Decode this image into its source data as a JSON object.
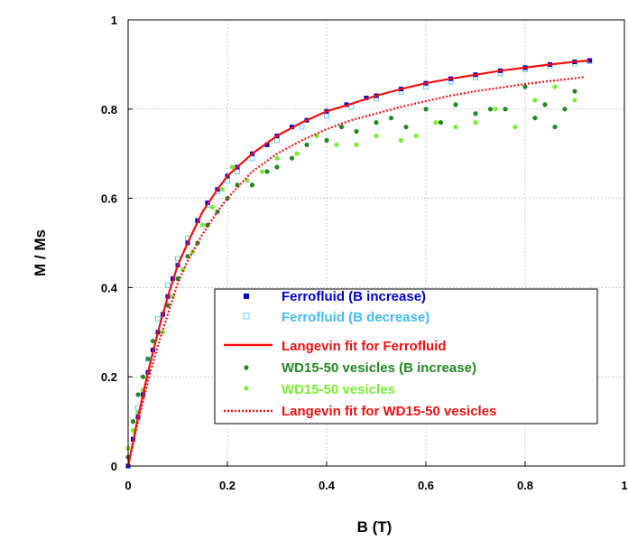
{
  "chart_data": {
    "type": "scatter",
    "title": "",
    "xlabel": "B (T)",
    "ylabel": "M / Ms",
    "xlim": [
      0,
      1
    ],
    "ylim": [
      0,
      1
    ],
    "x_ticks": [
      "0",
      "0.2",
      "0.4",
      "0.6",
      "0.8",
      "1"
    ],
    "y_ticks": [
      "0",
      "0.2",
      "0.4",
      "0.6",
      "0.8",
      "1"
    ],
    "grid": true,
    "legend_position": "lower-right",
    "series": [
      {
        "name": "Ferrofluid (B increase)",
        "style": "filled-square-markers",
        "color": "#0000cc",
        "x": [
          0,
          0.01,
          0.02,
          0.03,
          0.04,
          0.05,
          0.06,
          0.07,
          0.08,
          0.09,
          0.1,
          0.12,
          0.14,
          0.16,
          0.18,
          0.2,
          0.22,
          0.25,
          0.28,
          0.3,
          0.33,
          0.36,
          0.4,
          0.44,
          0.48,
          0.5,
          0.55,
          0.6,
          0.65,
          0.7,
          0.75,
          0.8,
          0.85,
          0.9,
          0.93
        ],
        "y": [
          0.0,
          0.06,
          0.11,
          0.16,
          0.21,
          0.26,
          0.3,
          0.34,
          0.38,
          0.42,
          0.45,
          0.5,
          0.55,
          0.59,
          0.62,
          0.65,
          0.67,
          0.7,
          0.72,
          0.74,
          0.76,
          0.775,
          0.795,
          0.81,
          0.825,
          0.83,
          0.845,
          0.858,
          0.868,
          0.877,
          0.886,
          0.893,
          0.9,
          0.906,
          0.909
        ]
      },
      {
        "name": "Ferrofluid (B decrease)",
        "style": "open-square-markers",
        "color": "#66ccff",
        "x": [
          0.93,
          0.9,
          0.85,
          0.8,
          0.75,
          0.7,
          0.65,
          0.6,
          0.55,
          0.5,
          0.45,
          0.4,
          0.35,
          0.3,
          0.25,
          0.22,
          0.2,
          0.18,
          0.16,
          0.14,
          0.12,
          0.1,
          0.08,
          0.06,
          0.04,
          0.02
        ],
        "y": [
          0.907,
          0.902,
          0.896,
          0.889,
          0.88,
          0.871,
          0.861,
          0.85,
          0.838,
          0.823,
          0.805,
          0.785,
          0.76,
          0.73,
          0.69,
          0.66,
          0.64,
          0.615,
          0.585,
          0.55,
          0.51,
          0.465,
          0.405,
          0.33,
          0.24,
          0.13
        ]
      },
      {
        "name": "Langevin fit for Ferrofluid",
        "style": "solid-line",
        "color": "#ee1111",
        "x": [
          0,
          0.02,
          0.04,
          0.06,
          0.08,
          0.1,
          0.12,
          0.15,
          0.18,
          0.2,
          0.25,
          0.3,
          0.35,
          0.4,
          0.45,
          0.5,
          0.55,
          0.6,
          0.65,
          0.7,
          0.75,
          0.8,
          0.85,
          0.9,
          0.93
        ],
        "y": [
          0,
          0.11,
          0.21,
          0.3,
          0.38,
          0.45,
          0.5,
          0.57,
          0.62,
          0.65,
          0.7,
          0.74,
          0.77,
          0.795,
          0.812,
          0.83,
          0.845,
          0.858,
          0.868,
          0.877,
          0.886,
          0.893,
          0.9,
          0.906,
          0.909
        ]
      },
      {
        "name": "WD15-50 vesicles (B increase)",
        "style": "filled-circle-markers",
        "color": "#228822",
        "x": [
          0.0,
          0.01,
          0.02,
          0.03,
          0.04,
          0.05,
          0.06,
          0.08,
          0.1,
          0.12,
          0.14,
          0.16,
          0.18,
          0.2,
          0.22,
          0.25,
          0.28,
          0.3,
          0.33,
          0.36,
          0.4,
          0.43,
          0.46,
          0.5,
          0.53,
          0.56,
          0.6,
          0.63,
          0.66,
          0.7,
          0.73,
          0.76,
          0.8,
          0.82,
          0.84,
          0.86,
          0.88,
          0.9
        ],
        "y": [
          0.02,
          0.1,
          0.16,
          0.2,
          0.24,
          0.28,
          0.3,
          0.36,
          0.42,
          0.47,
          0.5,
          0.54,
          0.57,
          0.6,
          0.63,
          0.63,
          0.66,
          0.67,
          0.69,
          0.72,
          0.73,
          0.76,
          0.75,
          0.77,
          0.78,
          0.76,
          0.8,
          0.77,
          0.81,
          0.79,
          0.8,
          0.8,
          0.85,
          0.78,
          0.81,
          0.76,
          0.8,
          0.84
        ]
      },
      {
        "name": "WD15-50 vesicles",
        "style": "filled-circle-markers",
        "color": "#77ee33",
        "x": [
          0.0,
          0.01,
          0.02,
          0.03,
          0.04,
          0.05,
          0.07,
          0.09,
          0.11,
          0.13,
          0.15,
          0.17,
          0.19,
          0.21,
          0.24,
          0.27,
          0.3,
          0.34,
          0.38,
          0.42,
          0.46,
          0.5,
          0.55,
          0.58,
          0.62,
          0.66,
          0.7,
          0.74,
          0.78,
          0.82,
          0.86,
          0.9
        ],
        "y": [
          0.04,
          0.08,
          0.12,
          0.17,
          0.21,
          0.26,
          0.3,
          0.38,
          0.44,
          0.48,
          0.54,
          0.58,
          0.62,
          0.67,
          0.64,
          0.66,
          0.69,
          0.7,
          0.74,
          0.72,
          0.72,
          0.74,
          0.73,
          0.74,
          0.77,
          0.76,
          0.77,
          0.8,
          0.76,
          0.82,
          0.85,
          0.82
        ]
      },
      {
        "name": "Langevin fit for WD15-50 vesicles",
        "style": "dotted-line",
        "color": "#ee1111",
        "x": [
          0,
          0.02,
          0.04,
          0.06,
          0.08,
          0.1,
          0.12,
          0.15,
          0.18,
          0.2,
          0.25,
          0.3,
          0.35,
          0.4,
          0.45,
          0.5,
          0.55,
          0.6,
          0.65,
          0.7,
          0.75,
          0.8,
          0.85,
          0.9,
          0.92
        ],
        "y": [
          0,
          0.1,
          0.19,
          0.27,
          0.34,
          0.41,
          0.46,
          0.52,
          0.57,
          0.6,
          0.66,
          0.7,
          0.73,
          0.755,
          0.775,
          0.79,
          0.805,
          0.818,
          0.83,
          0.84,
          0.848,
          0.856,
          0.863,
          0.869,
          0.872
        ]
      }
    ]
  }
}
